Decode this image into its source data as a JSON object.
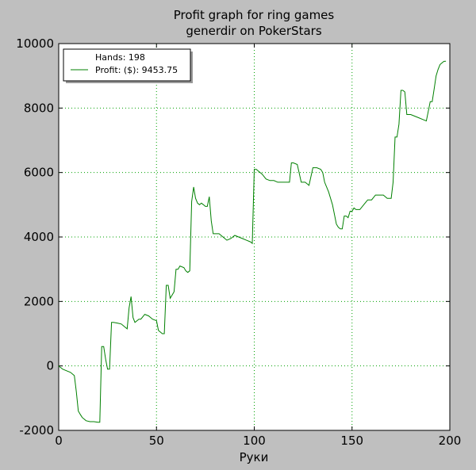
{
  "chart_data": {
    "type": "line",
    "title_lines": [
      "Profit graph for ring games",
      "generdir on PokerStars"
    ],
    "xlabel": "Руки",
    "ylabel": "",
    "xlim": [
      0,
      200
    ],
    "ylim": [
      -2000,
      10000
    ],
    "x_ticks": [
      0,
      50,
      100,
      150,
      200
    ],
    "y_ticks": [
      -2000,
      0,
      2000,
      4000,
      6000,
      8000,
      10000
    ],
    "grid": true,
    "legend_position": "top-left",
    "legend_entries": [
      "Hands: 198",
      "Profit: ($): 9453.75"
    ],
    "colors": {
      "background": "#bfbfbf",
      "plot_area": "#ffffff",
      "line": "#008000",
      "grid": "#00a000"
    },
    "series": [
      {
        "x": [
          0,
          2,
          4,
          6,
          8,
          9,
          10,
          11,
          12,
          14,
          16,
          18,
          20,
          21,
          22,
          23,
          24,
          25,
          26,
          27,
          28,
          30,
          32,
          34,
          35,
          36,
          37,
          38,
          39,
          40,
          41,
          42,
          44,
          46,
          48,
          50,
          51,
          52,
          53,
          54,
          55,
          56,
          57,
          58,
          59,
          60,
          61,
          62,
          64,
          65,
          66,
          67,
          68,
          69,
          70,
          71,
          72,
          73,
          74,
          75,
          76,
          77,
          78,
          79,
          80,
          82,
          84,
          86,
          88,
          90,
          92,
          94,
          96,
          98,
          99,
          100,
          101,
          102,
          104,
          106,
          108,
          110,
          112,
          114,
          116,
          118,
          119,
          120,
          122,
          124,
          126,
          127,
          128,
          130,
          132,
          134,
          135,
          136,
          138,
          140,
          142,
          143,
          144,
          145,
          146,
          147,
          148,
          149,
          150,
          151,
          152,
          154,
          156,
          158,
          160,
          162,
          164,
          166,
          168,
          169,
          170,
          171,
          172,
          173,
          174,
          175,
          176,
          177,
          178,
          179,
          180,
          182,
          184,
          186,
          188,
          190,
          191,
          192,
          193,
          194,
          195,
          196,
          197,
          198
        ],
        "y": [
          0,
          -100,
          -150,
          -200,
          -300,
          -800,
          -1400,
          -1500,
          -1600,
          -1700,
          -1730,
          -1730,
          -1750,
          -1750,
          600,
          600,
          200,
          -100,
          -100,
          1350,
          1350,
          1330,
          1300,
          1200,
          1150,
          1800,
          2150,
          1500,
          1350,
          1400,
          1450,
          1450,
          1600,
          1550,
          1450,
          1400,
          1100,
          1050,
          1000,
          1000,
          2500,
          2500,
          2100,
          2200,
          2300,
          3000,
          3000,
          3100,
          3050,
          2950,
          2900,
          2950,
          5100,
          5550,
          5200,
          5050,
          5000,
          5050,
          5000,
          4950,
          4950,
          5250,
          4500,
          4100,
          4100,
          4100,
          4000,
          3900,
          3950,
          4050,
          4000,
          3950,
          3900,
          3850,
          3800,
          6100,
          6100,
          6050,
          5950,
          5800,
          5750,
          5750,
          5700,
          5700,
          5700,
          5700,
          6300,
          6300,
          6250,
          5700,
          5700,
          5650,
          5600,
          6150,
          6150,
          6100,
          6000,
          5700,
          5400,
          5000,
          4400,
          4300,
          4250,
          4250,
          4650,
          4650,
          4600,
          4800,
          4800,
          4900,
          4850,
          4850,
          5000,
          5150,
          5150,
          5300,
          5300,
          5300,
          5200,
          5200,
          5200,
          5700,
          7100,
          7100,
          7500,
          8550,
          8550,
          8500,
          7800,
          7800,
          7800,
          7750,
          7700,
          7650,
          7600,
          8200,
          8200,
          8600,
          9000,
          9200,
          9350,
          9400,
          9450,
          9453.75
        ]
      }
    ]
  }
}
